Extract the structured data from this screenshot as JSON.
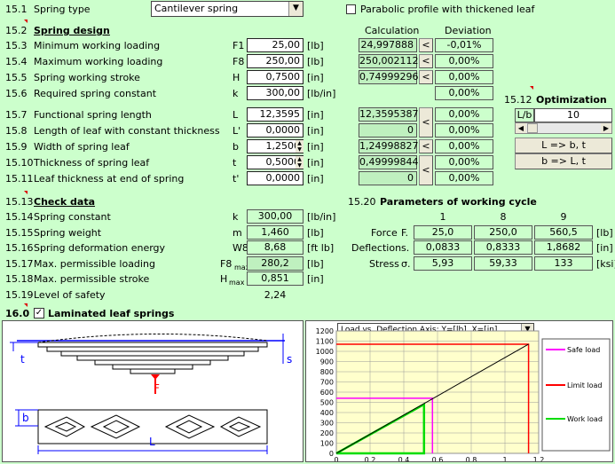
{
  "spring_type": {
    "num": "15.1",
    "label": "Spring type",
    "value": "Cantilever spring"
  },
  "parabolic": {
    "label": "Parabolic profile with thickened leaf",
    "checked": false
  },
  "design": {
    "num": "15.2",
    "title": "Spring design",
    "col_calc": "Calculation",
    "col_dev": "Deviation"
  },
  "rows": [
    {
      "num": "15.3",
      "label": "Minimum working loading",
      "sym": "F1",
      "val": "25,00",
      "unit": "[lb]",
      "calc": "24,997888",
      "dev": "-0,01%"
    },
    {
      "num": "15.4",
      "label": "Maximum working loading",
      "sym": "F8",
      "val": "250,00",
      "unit": "[lb]",
      "calc": "250,002112",
      "dev": "0,00%"
    },
    {
      "num": "15.5",
      "label": "Spring working stroke",
      "sym": "H",
      "val": "0,7500",
      "unit": "[in]",
      "calc": "0,74999296",
      "dev": "0,00%"
    },
    {
      "num": "15.6",
      "label": "Required spring constant",
      "sym": "k",
      "val": "300,00",
      "unit": "[lb/in]",
      "calc": "",
      "dev": "0,00%"
    },
    {
      "num": "15.7",
      "label": "Functional spring length",
      "sym": "L",
      "val": "12,3595",
      "unit": "[in]",
      "calc": "12,3595387",
      "dev": "0,00%"
    },
    {
      "num": "15.8",
      "label": "Length of leaf with constant thickness",
      "sym": "L'",
      "val": "0,0000",
      "unit": "[in]",
      "calc": "0",
      "dev": "0,00%"
    },
    {
      "num": "15.9",
      "label": "Width of spring leaf",
      "sym": "b",
      "val": "1,2500",
      "unit": "[in]",
      "calc": "1,24998827",
      "dev": "0,00%"
    },
    {
      "num": "15.10",
      "label": "Thickness of spring leaf",
      "sym": "t",
      "val": "0,5000",
      "unit": "[in]",
      "calc": "0,49999844",
      "dev": "0,00%"
    },
    {
      "num": "15.11",
      "label": "Leaf thickness at end of spring",
      "sym": "t'",
      "val": "0,0000",
      "unit": "[in]",
      "calc": "0",
      "dev": "0,00%"
    }
  ],
  "optimization": {
    "num": "15.12",
    "title": "Optimization",
    "lb_label": "L/b",
    "lb_value": "10",
    "btn1": "L => b, t",
    "btn2": "b => L, t"
  },
  "check": {
    "num": "15.13",
    "title": "Check data"
  },
  "check_rows": [
    {
      "num": "15.14",
      "label": "Spring constant",
      "sym": "k",
      "val": "300,00",
      "unit": "[lb/in]"
    },
    {
      "num": "15.15",
      "label": "Spring weight",
      "sym": "m",
      "val": "1,460",
      "unit": "[lb]"
    },
    {
      "num": "15.16",
      "label": "Spring deformation energy",
      "sym": "W8",
      "val": "8,68",
      "unit": "[ft lb]"
    },
    {
      "num": "15.17",
      "label": "Max. permissible loading",
      "sym": "F8",
      "sub": "max",
      "val": "280,2",
      "unit": "[lb]"
    },
    {
      "num": "15.18",
      "label": "Max. permissible stroke",
      "sym": "H",
      "sub": "max",
      "val": "0,851",
      "unit": "[in]"
    },
    {
      "num": "15.19",
      "label": "Level of safety",
      "sym": "",
      "val": "2,24",
      "unit": ""
    }
  ],
  "cycle": {
    "num": "15.20",
    "title": "Parameters of working cycle",
    "cols": [
      "1",
      "8",
      "9"
    ],
    "rows": [
      {
        "label": "Force",
        "sym": "F.",
        "vals": [
          "25,0",
          "250,0",
          "560,5"
        ],
        "unit": "[lb]"
      },
      {
        "label": "Deflection",
        "sym": "s.",
        "vals": [
          "0,0833",
          "0,8333",
          "1,8682"
        ],
        "unit": "[in]"
      },
      {
        "label": "Stress",
        "sym": "σ.",
        "vals": [
          "5,93",
          "59,33",
          "133"
        ],
        "unit": "[ksi]"
      }
    ]
  },
  "laminated": {
    "num": "16.0",
    "label": "Laminated leaf springs",
    "checked": true
  },
  "drawing": {
    "t": "t",
    "s": "s",
    "F": "F",
    "b": "b",
    "L": "L"
  },
  "chart_select": "Load vs. Deflection   Axis: Y=[lb], X=[in]",
  "legend": {
    "safe": "Safe load",
    "limit": "Limit load",
    "work": "Work load",
    "safe_color": "#ff00ff",
    "limit_color": "#ff0000",
    "work_color": "#00dd00"
  },
  "chart_data": {
    "type": "line",
    "xlim": [
      0,
      1.2
    ],
    "ylim": [
      0,
      1200
    ],
    "x_ticks": [
      "0",
      "0,2",
      "0,4",
      "0,6",
      "0,8",
      "1",
      "1,2"
    ],
    "y_ticks": [
      "0",
      "100",
      "200",
      "300",
      "400",
      "500",
      "600",
      "700",
      "800",
      "900",
      "1000",
      "1100",
      "1200"
    ],
    "series": [
      {
        "name": "Safe load",
        "points": [
          [
            0,
            540
          ],
          [
            0.57,
            540
          ],
          [
            0.57,
            0
          ]
        ]
      },
      {
        "name": "Limit load",
        "points": [
          [
            0,
            1070
          ],
          [
            1.14,
            1070
          ],
          [
            1.14,
            0
          ]
        ]
      },
      {
        "name": "Work load",
        "points": [
          [
            0,
            0
          ],
          [
            0.52,
            480
          ],
          [
            0.52,
            0
          ],
          [
            0,
            0
          ]
        ]
      },
      {
        "name": "",
        "points": [
          [
            0,
            0
          ],
          [
            1.14,
            1070
          ]
        ]
      }
    ]
  }
}
